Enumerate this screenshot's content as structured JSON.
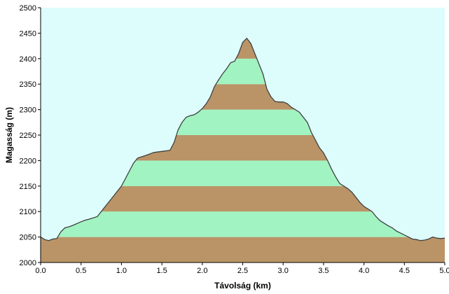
{
  "chart_data": {
    "type": "area",
    "title": "",
    "xlabel": "Távolság  (km)",
    "ylabel": "Magasság (m)",
    "xlim": [
      0.0,
      5.0
    ],
    "ylim": [
      2000,
      2500
    ],
    "x_ticks": [
      "0.0",
      "0.5",
      "1.0",
      "1.5",
      "2.0",
      "2.5",
      "3.0",
      "3.5",
      "4.0",
      "4.5",
      "5.0"
    ],
    "y_ticks": [
      "2000",
      "2050",
      "2100",
      "2150",
      "2200",
      "2250",
      "2300",
      "2350",
      "2400",
      "2450",
      "2500"
    ],
    "grid": false,
    "legend": "none",
    "band_height": 50,
    "colors": {
      "background": "#ddfcfc",
      "band_brown": "#ba9467",
      "band_green": "#a1f4c1",
      "profile_line": "#404040",
      "axis": "#000000"
    },
    "profile": {
      "x": [
        0.0,
        0.05,
        0.1,
        0.15,
        0.2,
        0.25,
        0.3,
        0.35,
        0.4,
        0.5,
        0.55,
        0.6,
        0.7,
        0.75,
        0.8,
        0.85,
        0.9,
        0.95,
        1.0,
        1.05,
        1.1,
        1.15,
        1.2,
        1.3,
        1.4,
        1.5,
        1.6,
        1.65,
        1.7,
        1.75,
        1.8,
        1.85,
        1.9,
        1.95,
        2.0,
        2.05,
        2.1,
        2.15,
        2.2,
        2.25,
        2.3,
        2.35,
        2.4,
        2.45,
        2.5,
        2.55,
        2.6,
        2.65,
        2.7,
        2.75,
        2.8,
        2.85,
        2.9,
        2.95,
        3.0,
        3.05,
        3.1,
        3.15,
        3.2,
        3.3,
        3.35,
        3.4,
        3.45,
        3.5,
        3.55,
        3.6,
        3.65,
        3.7,
        3.8,
        3.85,
        3.9,
        3.95,
        4.0,
        4.1,
        4.15,
        4.2,
        4.25,
        4.3,
        4.35,
        4.4,
        4.45,
        4.5,
        4.55,
        4.6,
        4.65,
        4.7,
        4.75,
        4.8,
        4.85,
        4.9,
        4.95,
        5.0
      ],
      "y": [
        2050,
        2045,
        2043,
        2046,
        2047,
        2060,
        2068,
        2070,
        2073,
        2080,
        2083,
        2085,
        2090,
        2100,
        2110,
        2120,
        2130,
        2140,
        2150,
        2165,
        2180,
        2195,
        2205,
        2210,
        2216,
        2218,
        2220,
        2235,
        2260,
        2275,
        2285,
        2288,
        2290,
        2295,
        2302,
        2312,
        2325,
        2345,
        2358,
        2370,
        2380,
        2392,
        2395,
        2410,
        2432,
        2440,
        2430,
        2410,
        2390,
        2370,
        2340,
        2325,
        2316,
        2315,
        2315,
        2312,
        2305,
        2300,
        2295,
        2275,
        2255,
        2240,
        2225,
        2215,
        2200,
        2183,
        2168,
        2155,
        2145,
        2138,
        2128,
        2118,
        2110,
        2100,
        2090,
        2082,
        2077,
        2072,
        2068,
        2062,
        2058,
        2054,
        2050,
        2046,
        2045,
        2043,
        2044,
        2046,
        2050,
        2048,
        2047,
        2048
      ]
    }
  }
}
